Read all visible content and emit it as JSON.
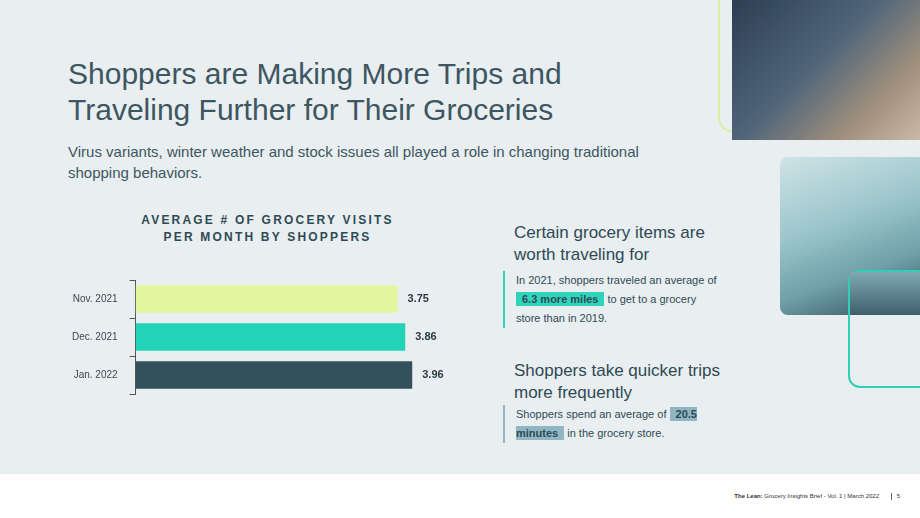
{
  "header": {
    "title": "Shoppers are Making More Trips and Traveling Further for Their Groceries",
    "subtitle": "Virus variants, winter weather and stock issues all played a role in changing traditional shopping behaviors."
  },
  "chart_data": {
    "type": "bar",
    "title": "AVERAGE # OF GROCERY VISITS PER MONTH BY SHOPPERS",
    "orientation": "horizontal",
    "categories": [
      "Nov. 2021",
      "Dec. 2021",
      "Jan. 2022"
    ],
    "values": [
      3.75,
      3.86,
      3.96
    ],
    "colors": [
      "#e4f5a0",
      "#22d3b8",
      "#34505c"
    ],
    "xlim": [
      0,
      4
    ],
    "xticks": [
      0,
      4
    ],
    "grid": false,
    "data_labels": true,
    "tick_labels": "y"
  },
  "callouts": [
    {
      "heading": "Certain grocery items are worth traveling for",
      "before": "In 2021, shoppers traveled an average of",
      "highlight": "6.3 more miles",
      "after": "to get to a grocery store than in 2019."
    },
    {
      "heading": "Shoppers take quicker trips more frequently",
      "before": "Shoppers spend an average of",
      "highlight": "20.5 minutes",
      "after": "in the grocery store."
    }
  ],
  "footer": {
    "brand": "The Lean:",
    "text": "Grocery Insights Brief - Vol. 1 | March 2022",
    "page": "5"
  }
}
